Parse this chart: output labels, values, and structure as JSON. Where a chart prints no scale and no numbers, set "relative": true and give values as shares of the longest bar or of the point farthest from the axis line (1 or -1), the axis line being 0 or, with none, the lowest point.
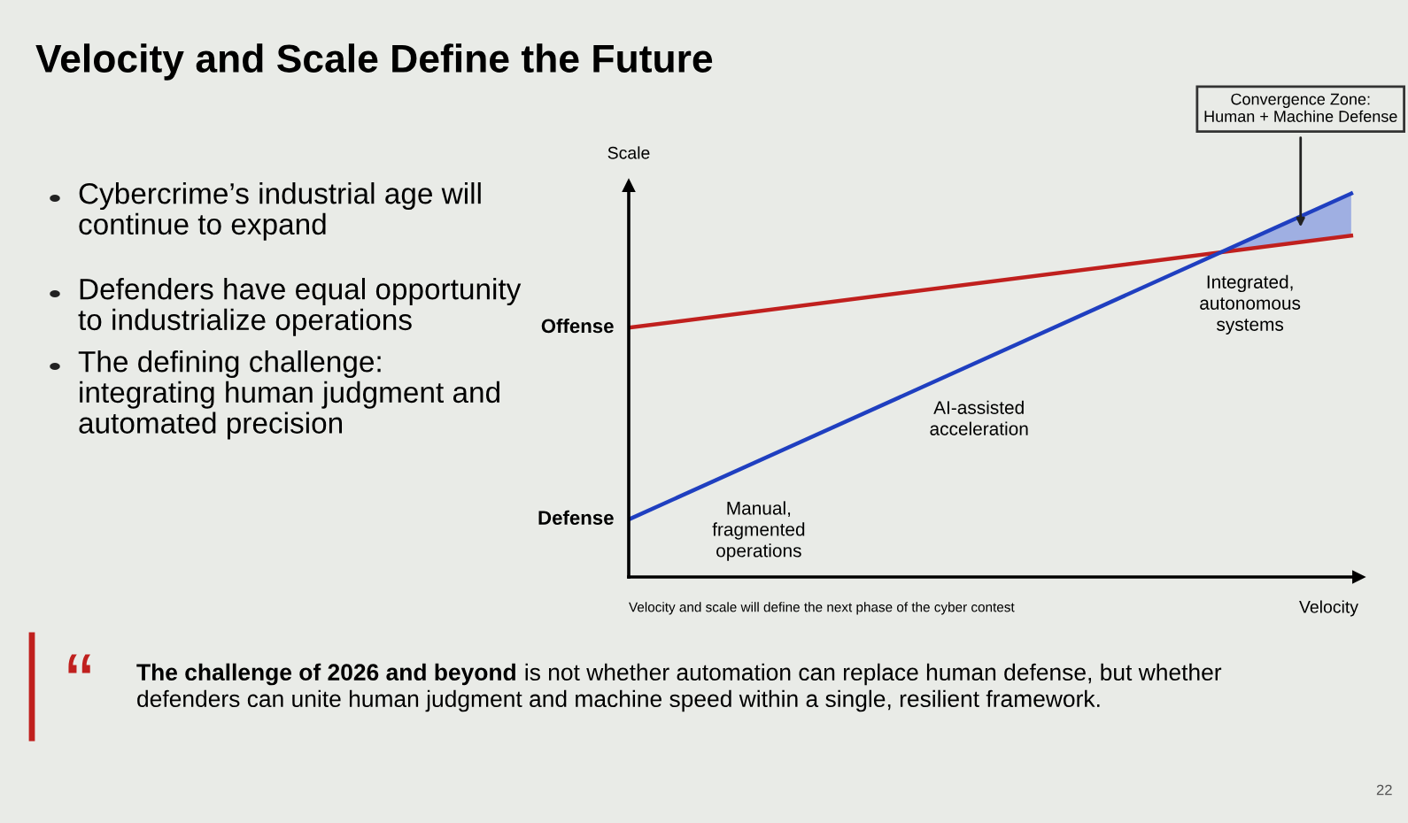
{
  "chart_data": {
    "type": "line",
    "title": "Velocity and Scale Define the Future",
    "xlabel": "Velocity",
    "ylabel": "Scale",
    "relative": true,
    "categories": [
      null,
      null
    ],
    "series": [
      {
        "name": "Offense",
        "color": "#c0201e",
        "values": [
          0.65,
          0.89
        ]
      },
      {
        "name": "Defense",
        "color": "#1f3fc0",
        "values": [
          0.15,
          1.0
        ]
      }
    ],
    "annotations": [
      "Convergence Zone:\nHuman + Machine Defense",
      "“",
      "Manual,\nfragmented\noperations",
      "AI-assisted\nacceleration",
      "Integrated,\nautonomous\nsystems",
      "Velocity and scale will define the next phase of the cyber contest",
      "Cybercrime’s industrial age will\ncontinue to expand",
      "Defenders have equal opportunity\nto industrialize operations",
      "The defining challenge:\nintegrating human judgment and\nautomated precision",
      "The challenge of 2026 and beyond",
      " is not whether automation can replace human defense, but whether\ndefenders can unite human judgment and machine speed within a single, resilient framework.",
      "22"
    ],
    "legend": false,
    "grid": false,
    "marker": "none",
    "line_style": "solid"
  }
}
